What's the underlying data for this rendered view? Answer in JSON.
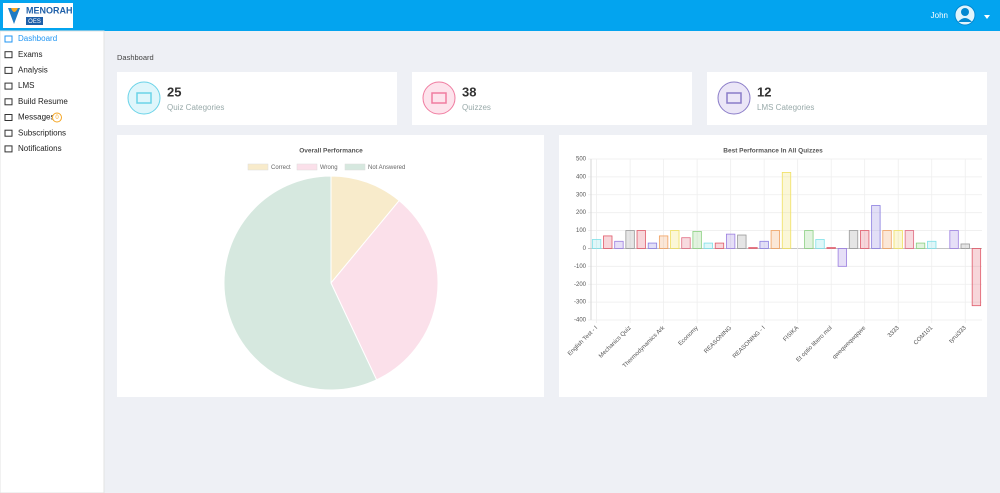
{
  "header": {
    "logo": "MENORAH",
    "logo_sub": "OES",
    "user": "John"
  },
  "sidebar": {
    "items": [
      "Dashboard",
      "Exams",
      "Analysis",
      "LMS",
      "Build Resume",
      "Messages",
      "Subscriptions",
      "Notifications"
    ],
    "badge": "0"
  },
  "breadcrumb": "Dashboard",
  "cards": [
    {
      "value": 25,
      "label": "Quiz Categories"
    },
    {
      "value": 38,
      "label": "Quizzes"
    },
    {
      "value": 12,
      "label": "LMS Categories"
    }
  ],
  "chart_data": [
    {
      "type": "pie",
      "title": "Overall Performance",
      "categories": [
        "Correct",
        "Wrong",
        "Not Answered"
      ],
      "values": [
        11,
        32,
        57
      ],
      "colors": [
        "#f8ebcb",
        "#fbe0ea",
        "#d6e8df"
      ]
    },
    {
      "type": "bar",
      "title": "Best Performance In All Quizzes",
      "categories": [
        "English Test - I",
        null,
        null,
        "Mechanics Quiz",
        null,
        null,
        "Thermodynamics Ark",
        null,
        null,
        "Economy",
        null,
        null,
        "REASONING",
        null,
        null,
        "REASONING - I",
        null,
        null,
        "FISIKA",
        null,
        null,
        "Et optio libero mol",
        null,
        null,
        "qweqweqwqqwe",
        null,
        null,
        "3333",
        null,
        null,
        "COM101",
        null,
        null,
        "tyrui333",
        null
      ],
      "values": [
        50,
        70,
        40,
        100,
        100,
        30,
        70,
        100,
        60,
        95,
        30,
        30,
        80,
        75,
        5,
        40,
        100,
        425,
        0,
        100,
        50,
        5,
        -100,
        100,
        100,
        240,
        100,
        100,
        100,
        30,
        40,
        0,
        100,
        25,
        -320
      ],
      "colors": [
        "#7ee0e8",
        "#e05a6a",
        "#9b7ee0",
        "#999999",
        "#e05a6a",
        "#8a7ee0",
        "#f0a060",
        "#f0e060",
        "#e06a80",
        "#8ad080"
      ],
      "ylim": [
        -400,
        500
      ],
      "yticks": [
        -400,
        -300,
        -200,
        -100,
        0,
        100,
        200,
        300,
        400,
        500
      ],
      "grid": true
    }
  ]
}
